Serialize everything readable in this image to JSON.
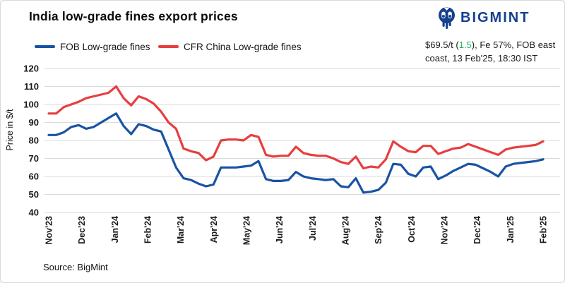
{
  "header": {
    "title": "India low-grade fines export prices",
    "logo_text": "BIGMINT",
    "logo_color": "#16408f"
  },
  "annotation": {
    "pre": "$69.5/t (",
    "change": "1.5",
    "post": "), Fe 57%, FOB east",
    "line2": "coast, 13 Feb'25, 18:30 IST",
    "change_color": "#27b267"
  },
  "source": "Source: BigMint",
  "chart_data": {
    "type": "line",
    "title": "India low-grade fines export prices",
    "xlabel": "",
    "ylabel": "Price in $/t",
    "ylim": [
      40,
      120
    ],
    "ytick_step": 10,
    "grid": true,
    "legend_position": "top-left",
    "x_unit": "weekly points, Nov 2023 to mid-Feb 2025",
    "categories": [
      "Nov'23",
      "Dec'23",
      "Jan'24",
      "Feb'24",
      "Mar'24",
      "Apr'24",
      "May'24",
      "Jun'24",
      "Jul'24",
      "Aug'24",
      "Sep'24",
      "Oct'24",
      "Nov'24",
      "Dec'24",
      "Jan'25",
      "Feb'25"
    ],
    "series": [
      {
        "name": "FOB Low-grade fines",
        "color": "#1953a4",
        "values": [
          83,
          83,
          84.5,
          87.5,
          88.5,
          86.5,
          87.5,
          90,
          92.5,
          95,
          88,
          83.5,
          89,
          88,
          86,
          85,
          75,
          65,
          59,
          58,
          56,
          54.5,
          55.5,
          65,
          65,
          65,
          65.5,
          66,
          68.5,
          58.5,
          57.5,
          57.5,
          58,
          62.5,
          60,
          59,
          58.5,
          58,
          58.5,
          54.5,
          54,
          59,
          51,
          51.5,
          52.5,
          56.5,
          67,
          66.5,
          61.5,
          60,
          65,
          65.5,
          58.5,
          60.5,
          63,
          65,
          67,
          66.5,
          64.5,
          62.5,
          60,
          65.5,
          67,
          67.5,
          68,
          68.5,
          69.5
        ]
      },
      {
        "name": "CFR China Low-grade fines",
        "color": "#e83e3e",
        "values": [
          95,
          95,
          98.5,
          100,
          101.5,
          103.5,
          104.5,
          105.5,
          106.5,
          110,
          103.5,
          99.5,
          104.5,
          103,
          100.5,
          96,
          90,
          86.5,
          75.5,
          74,
          73,
          69,
          71,
          80,
          80.5,
          80.5,
          80,
          83,
          82,
          72,
          71,
          71.5,
          71.5,
          76.5,
          73,
          72,
          71.5,
          71.5,
          70,
          68,
          67,
          71,
          64.5,
          65.5,
          65,
          69.5,
          79.5,
          76.5,
          74,
          73.5,
          77,
          77,
          72.5,
          74,
          75.5,
          76,
          78,
          76.5,
          75,
          73.5,
          72,
          75,
          76,
          76.5,
          77,
          77.5,
          79.5
        ]
      }
    ],
    "latest_values": {
      "fob": 69.5,
      "fob_change": 1.5,
      "cfr": 79.5
    }
  }
}
